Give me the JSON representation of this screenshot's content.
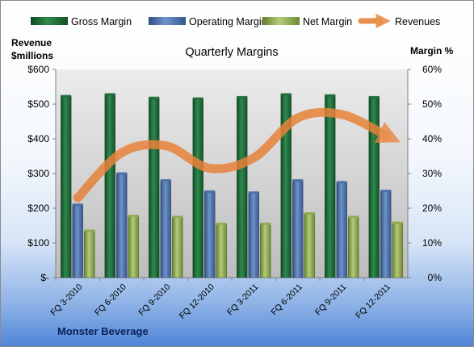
{
  "chart_data": {
    "type": "bar",
    "title": "Quarterly Margins",
    "footer": "Monster Beverage",
    "categories": [
      "FQ 3-2010",
      "FQ 6-2010",
      "FQ 9-2010",
      "FQ 12-2010",
      "FQ 3-2011",
      "FQ 6-2011",
      "FQ 9-2011",
      "FQ 12-2011"
    ],
    "series": [
      {
        "name": "Gross Margin",
        "axis": "right",
        "color": "#1e6b3a",
        "values": [
          52.3,
          52.8,
          51.8,
          51.6,
          52.0,
          52.8,
          52.5,
          52.0
        ]
      },
      {
        "name": "Operating Margin",
        "axis": "right",
        "color": "#4a6ea8",
        "values": [
          21.0,
          30.0,
          28.0,
          24.8,
          24.5,
          28.0,
          27.5,
          25.0
        ]
      },
      {
        "name": "Net Margin",
        "axis": "right",
        "color": "#8fac4e",
        "values": [
          13.5,
          17.8,
          17.5,
          15.5,
          15.5,
          18.5,
          17.5,
          15.8
        ]
      }
    ],
    "line_series": {
      "name": "Revenues",
      "axis": "left",
      "color": "#e8823a",
      "values": [
        230,
        360,
        380,
        315,
        345,
        460,
        470,
        410
      ]
    },
    "y_left": {
      "title_line1": "Revenue",
      "title_line2": "$millions",
      "range": [
        0,
        600
      ],
      "ticks": [
        "$-",
        "$100",
        "$200",
        "$300",
        "$400",
        "$500",
        "$600"
      ]
    },
    "y_right": {
      "title": "Margin %",
      "range": [
        0,
        60
      ],
      "ticks": [
        "0%",
        "10%",
        "20%",
        "30%",
        "40%",
        "50%",
        "60%"
      ]
    },
    "legend_position": "top",
    "grid": false
  }
}
